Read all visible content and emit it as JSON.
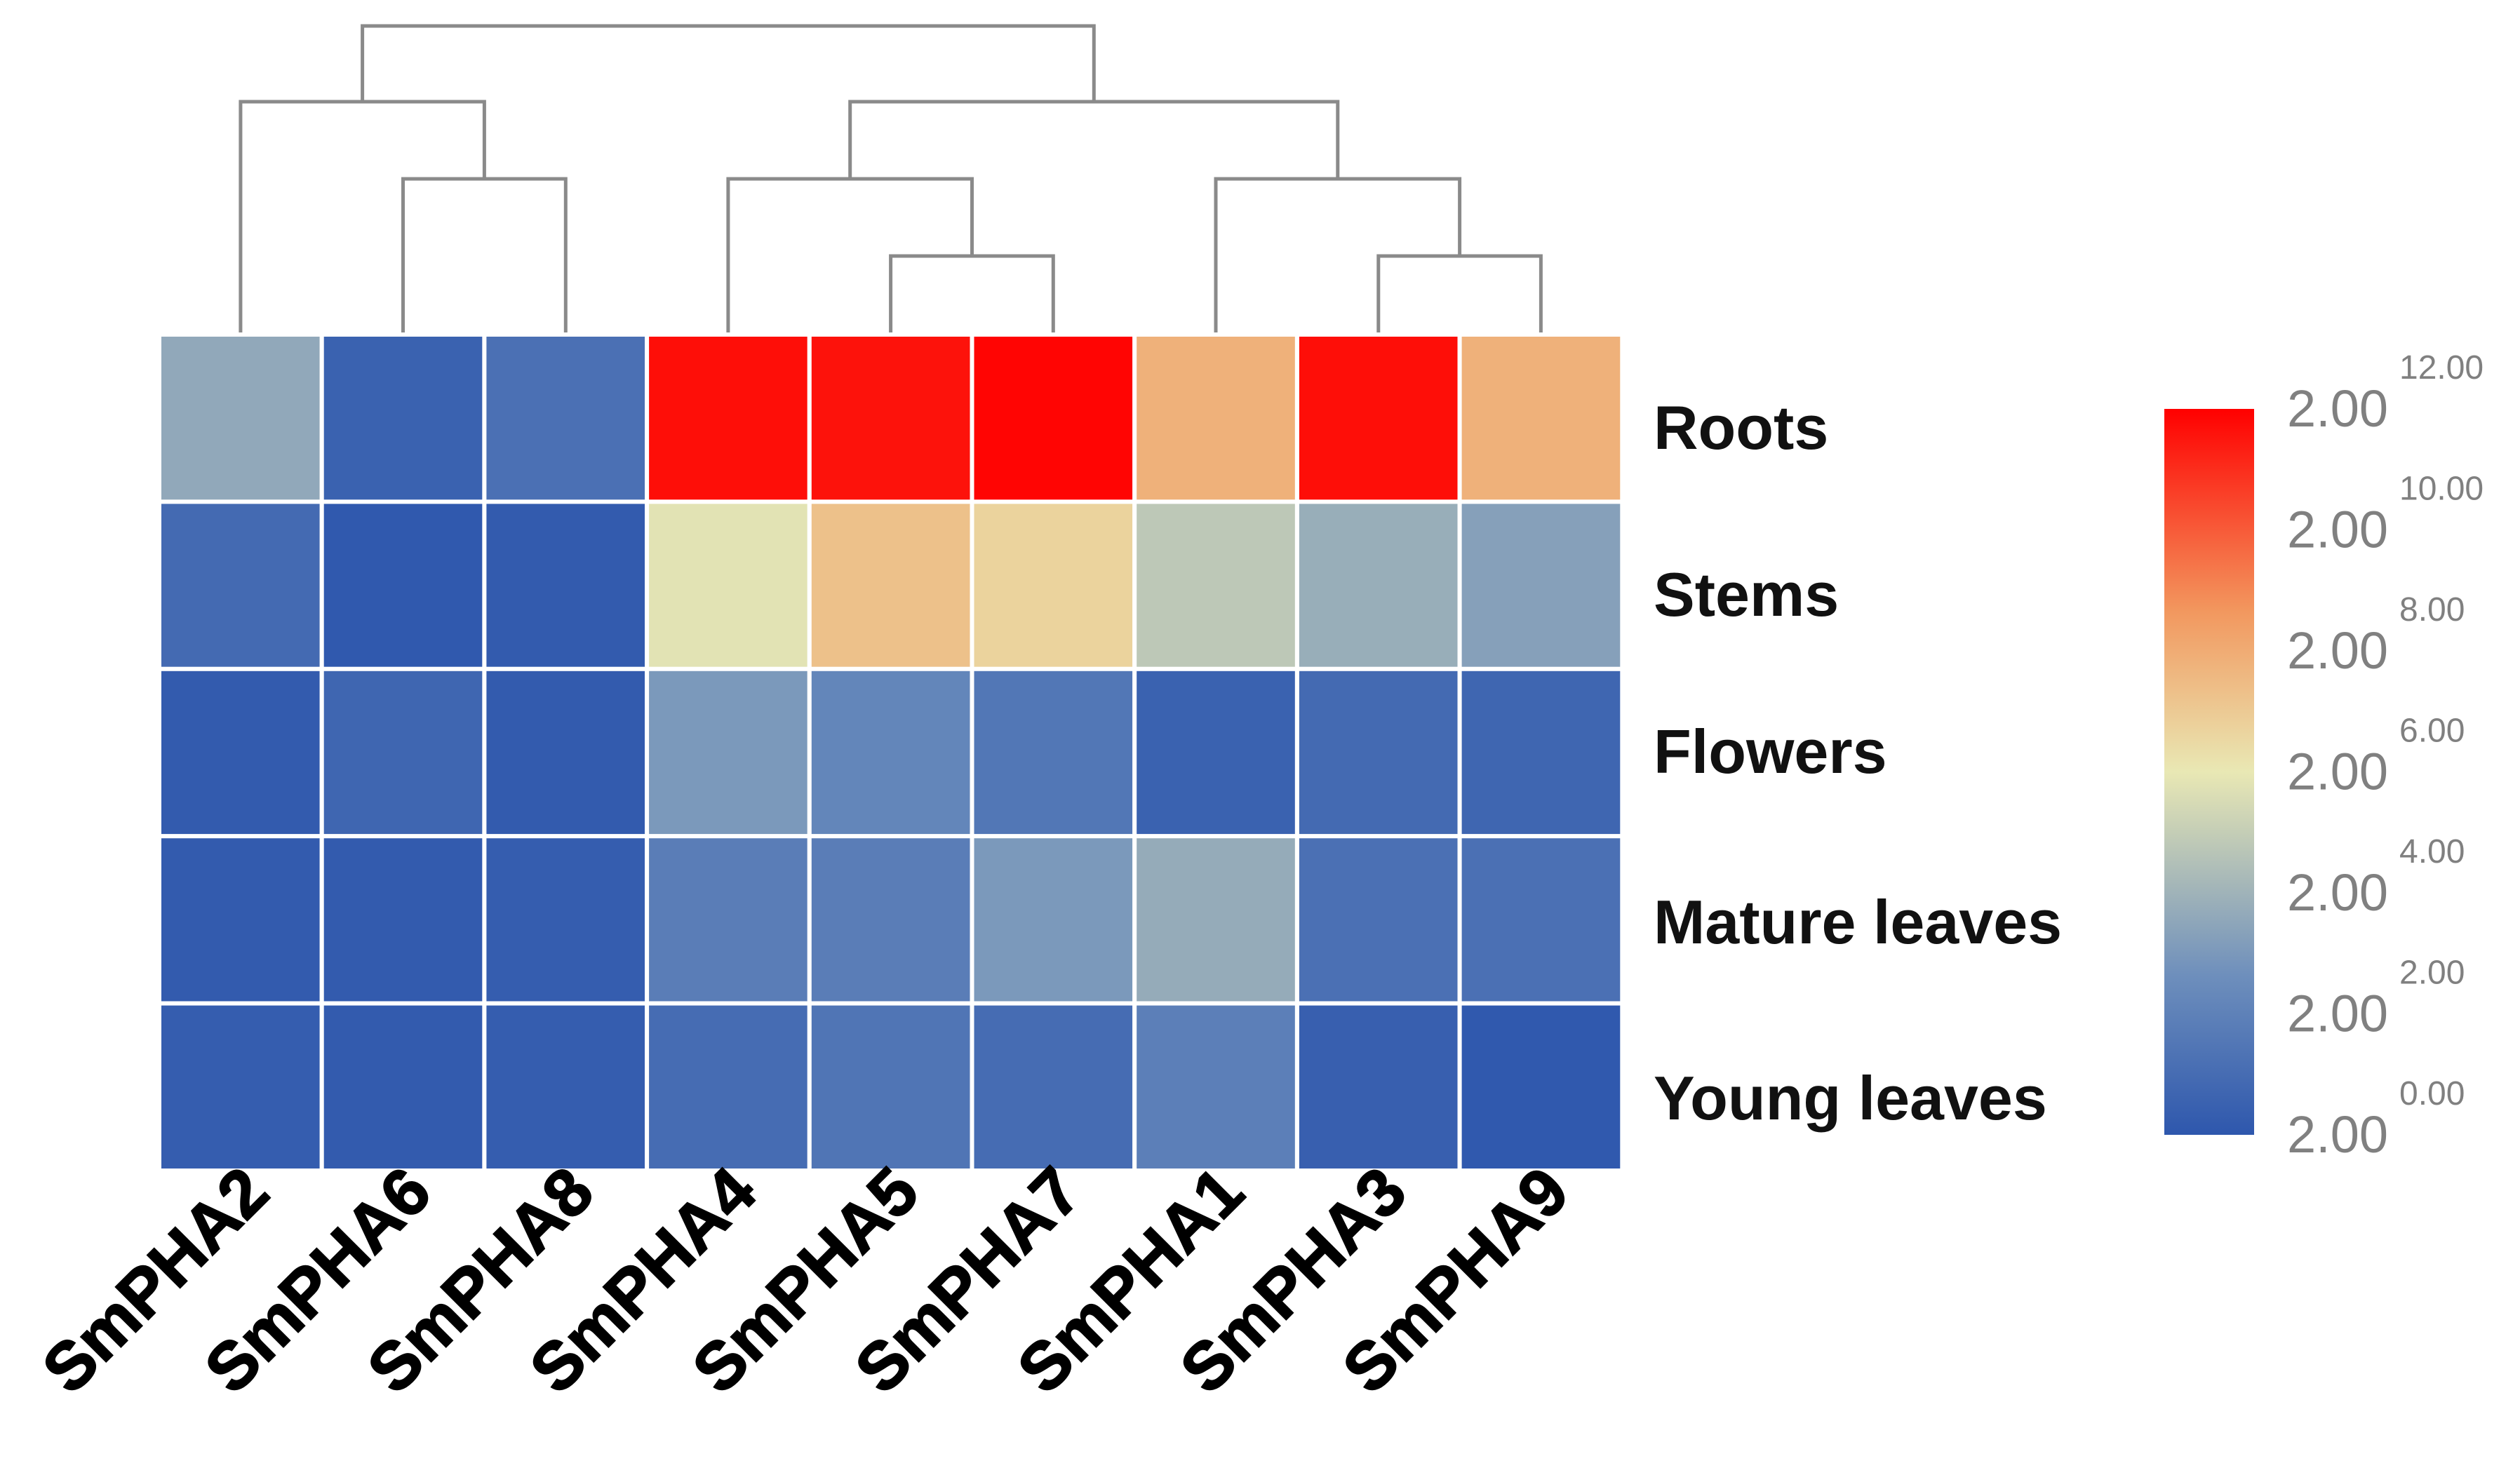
{
  "chart_data": {
    "type": "heatmap",
    "title": "",
    "columns": [
      "SmPHA2",
      "SmPHA6",
      "SmPHA8",
      "SmPHA4",
      "SmPHA5",
      "SmPHA7",
      "SmPHA1",
      "SmPHA3",
      "SmPHA9"
    ],
    "rows": [
      "Roots",
      "Stems",
      "Flowers",
      "Mature leaves",
      "Young leaves"
    ],
    "values": [
      [
        3.6,
        0.5,
        1.2,
        11.7,
        11.6,
        11.9,
        7.8,
        11.7,
        7.8
      ],
      [
        0.9,
        0.1,
        0.2,
        5.8,
        7.3,
        6.7,
        4.8,
        3.8,
        3.3
      ],
      [
        0.2,
        0.7,
        0.2,
        3.0,
        2.2,
        1.5,
        0.5,
        0.9,
        0.7
      ],
      [
        0.2,
        0.2,
        0.3,
        1.8,
        1.8,
        3.0,
        3.7,
        1.2,
        1.2
      ],
      [
        0.3,
        0.2,
        0.3,
        1.0,
        1.4,
        1.0,
        1.9,
        0.4,
        0.1
      ]
    ],
    "colorbar": {
      "base_label": "2.00",
      "exponent_labels": [
        "0.00",
        "2.00",
        "4.00",
        "6.00",
        "8.00",
        "10.00",
        "12.00"
      ],
      "range": [
        0,
        12
      ],
      "colors": {
        "low": "#2e57ad",
        "lowmid": "#6e8fbc",
        "mid": "#e9e8b4",
        "highmid": "#f2985f",
        "high": "#ff0000"
      }
    },
    "dendrogram": {
      "leaf_order": [
        "SmPHA2",
        "SmPHA6",
        "SmPHA8",
        "SmPHA4",
        "SmPHA5",
        "SmPHA7",
        "SmPHA1",
        "SmPHA3",
        "SmPHA9"
      ],
      "merges": [
        {
          "children": [
            "SmPHA6",
            "SmPHA8"
          ],
          "height": 1
        },
        {
          "children": [
            "SmPHA5",
            "SmPHA7"
          ],
          "height": 0.5
        },
        {
          "children": [
            "SmPHA3",
            "SmPHA9"
          ],
          "height": 0.5
        },
        {
          "children": [
            "SmPHA2",
            "m1"
          ],
          "height": 2
        },
        {
          "children": [
            "SmPHA4",
            "m2"
          ],
          "height": 1
        },
        {
          "children": [
            "SmPHA1",
            "m3"
          ],
          "height": 1
        },
        {
          "children": [
            "m5",
            "m6"
          ],
          "height": 2
        },
        {
          "children": [
            "m4",
            "m7"
          ],
          "height": 3
        }
      ]
    }
  }
}
